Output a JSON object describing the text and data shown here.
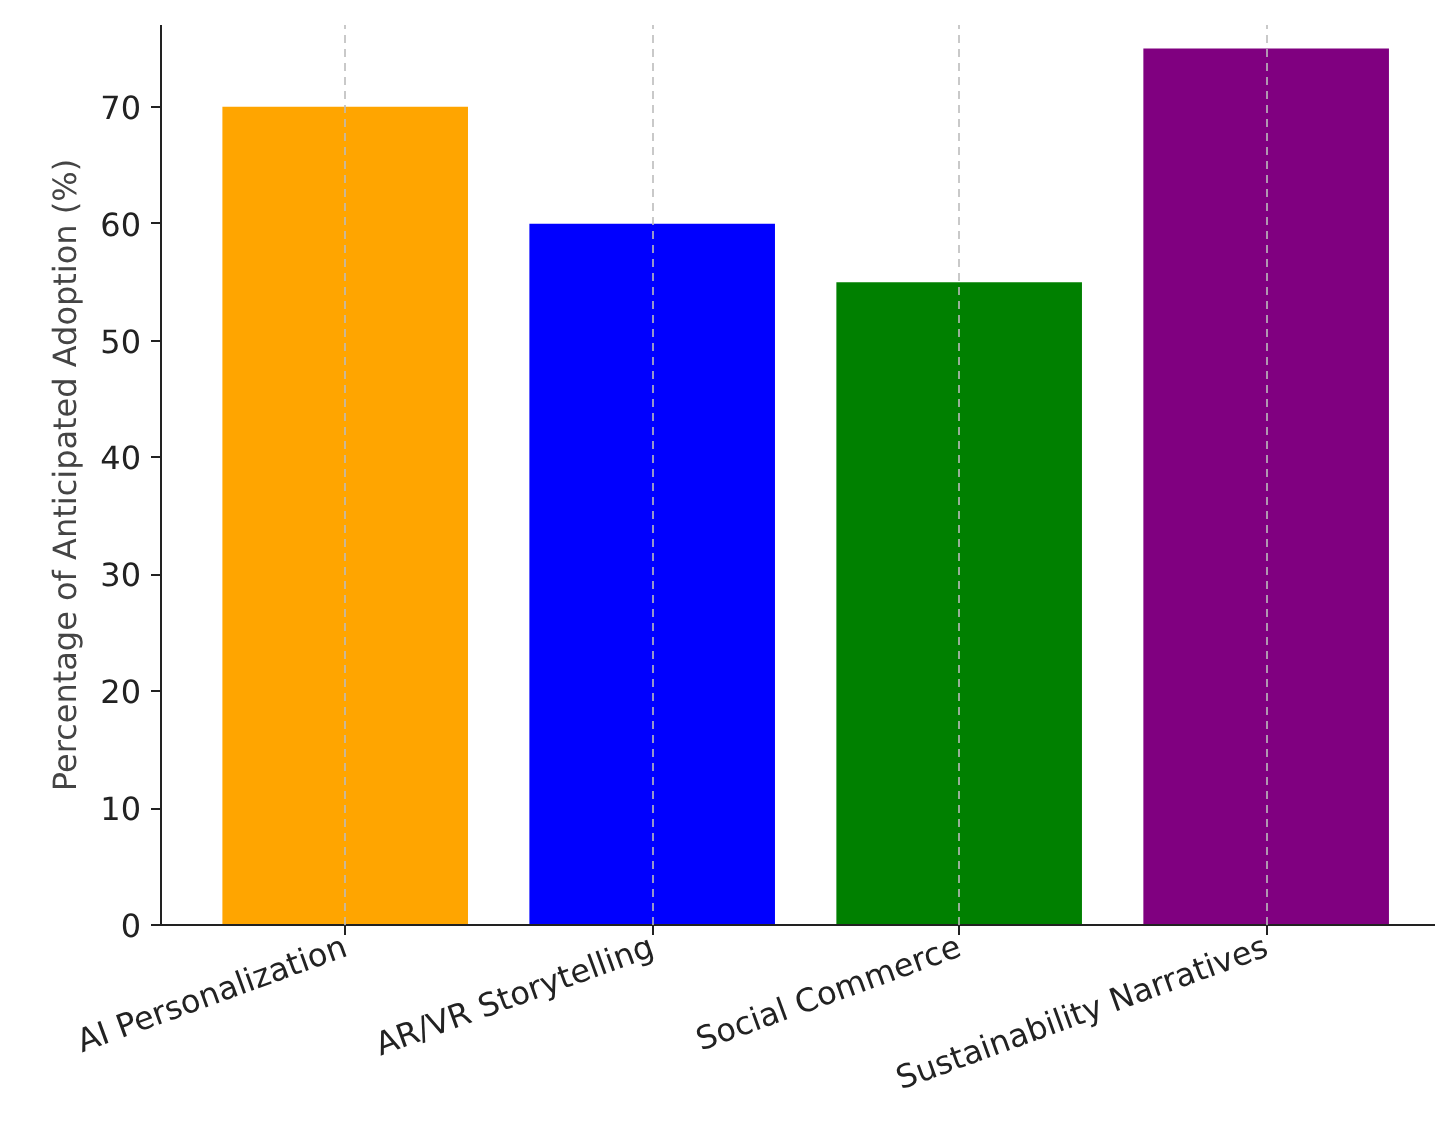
{
  "chart_data": {
    "type": "bar",
    "ylabel": "Percentage of Anticipated Adoption (%)",
    "categories": [
      "AI Personalization",
      "AR/VR Storytelling",
      "Social Commerce",
      "Sustainability Narratives"
    ],
    "values": [
      70,
      60,
      55,
      75
    ],
    "colors": [
      "#ffa500",
      "#0000ff",
      "#008000",
      "#800080"
    ],
    "ylim": [
      0,
      77
    ],
    "yticks": [
      0,
      10,
      20,
      30,
      40,
      50,
      60,
      70
    ],
    "grid": "x"
  }
}
